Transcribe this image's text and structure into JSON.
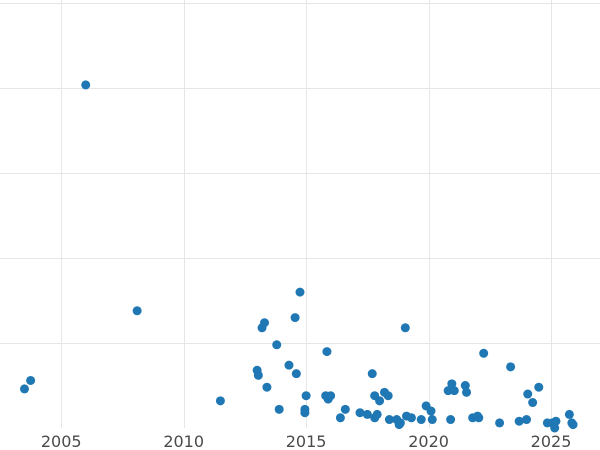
{
  "chart_data": {
    "type": "scatter",
    "title": "",
    "xlabel": "",
    "ylabel": "",
    "xlim": [
      2002.5,
      2027.0
    ],
    "ylim": [
      0,
      25.2
    ],
    "x_ticks": [
      2005,
      2010,
      2015,
      2020,
      2025
    ],
    "x_tick_labels": [
      "2005",
      "2010",
      "2015",
      "2020",
      "2025"
    ],
    "y_gridlines": [
      5,
      10,
      15,
      20,
      25
    ],
    "y_tick_labels_visible": false,
    "grid": true,
    "marker_color": "#1f77b4",
    "series": [
      {
        "points": [
          [
            2003.5,
            2.3
          ],
          [
            2003.75,
            2.8
          ],
          [
            2006.0,
            20.2
          ],
          [
            2008.1,
            6.9
          ],
          [
            2011.5,
            1.6
          ],
          [
            2013.0,
            3.4
          ],
          [
            2013.05,
            3.1
          ],
          [
            2013.2,
            5.9
          ],
          [
            2013.3,
            6.2
          ],
          [
            2013.4,
            2.4
          ],
          [
            2013.8,
            4.9
          ],
          [
            2013.9,
            1.1
          ],
          [
            2014.3,
            3.7
          ],
          [
            2014.55,
            6.5
          ],
          [
            2014.6,
            3.2
          ],
          [
            2014.75,
            8.0
          ],
          [
            2014.95,
            1.1
          ],
          [
            2014.95,
            0.9
          ],
          [
            2015.0,
            1.9
          ],
          [
            2015.8,
            1.9
          ],
          [
            2015.85,
            4.5
          ],
          [
            2015.9,
            1.7
          ],
          [
            2016.0,
            1.9
          ],
          [
            2016.4,
            0.6
          ],
          [
            2016.6,
            1.1
          ],
          [
            2017.2,
            0.9
          ],
          [
            2017.5,
            0.8
          ],
          [
            2017.7,
            3.2
          ],
          [
            2017.8,
            0.6
          ],
          [
            2017.8,
            1.9
          ],
          [
            2017.9,
            0.8
          ],
          [
            2018.0,
            1.6
          ],
          [
            2018.2,
            2.1
          ],
          [
            2018.35,
            1.9
          ],
          [
            2018.4,
            0.5
          ],
          [
            2018.7,
            0.5
          ],
          [
            2018.8,
            0.2
          ],
          [
            2018.85,
            0.3
          ],
          [
            2019.05,
            5.9
          ],
          [
            2019.1,
            0.7
          ],
          [
            2019.3,
            0.6
          ],
          [
            2019.7,
            0.5
          ],
          [
            2019.9,
            1.3
          ],
          [
            2020.1,
            1.0
          ],
          [
            2020.15,
            0.5
          ],
          [
            2020.8,
            2.2
          ],
          [
            2020.9,
            0.5
          ],
          [
            2020.95,
            2.6
          ],
          [
            2021.05,
            2.2
          ],
          [
            2021.5,
            2.5
          ],
          [
            2021.55,
            2.1
          ],
          [
            2021.8,
            0.6
          ],
          [
            2022.0,
            0.7
          ],
          [
            2022.05,
            0.6
          ],
          [
            2022.25,
            4.4
          ],
          [
            2022.9,
            0.3
          ],
          [
            2023.35,
            3.6
          ],
          [
            2023.7,
            0.4
          ],
          [
            2024.0,
            0.5
          ],
          [
            2024.05,
            2.0
          ],
          [
            2024.25,
            1.5
          ],
          [
            2024.5,
            2.4
          ],
          [
            2024.85,
            0.3
          ],
          [
            2025.05,
            0.3
          ],
          [
            2025.15,
            0.0
          ],
          [
            2025.2,
            0.4
          ],
          [
            2025.75,
            0.8
          ],
          [
            2025.85,
            0.3
          ],
          [
            2025.9,
            0.2
          ]
        ]
      }
    ]
  }
}
